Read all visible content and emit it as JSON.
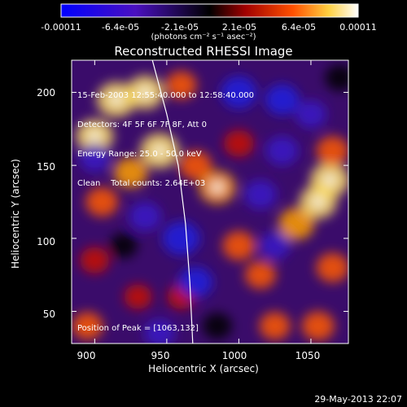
{
  "colorbar": {
    "ticks": [
      "-0.00011",
      "-6.4e-05",
      "-2.1e-05",
      "2.1e-05",
      "6.4e-05",
      "0.00011"
    ],
    "units": "(photons cm⁻² s⁻¹ asec⁻²)",
    "colors": [
      "#0000ff",
      "#5a1aa0",
      "#000000",
      "#b00000",
      "#ff6000",
      "#ffff80",
      "#ffffff"
    ]
  },
  "title": "Reconstructed RHESSI Image",
  "info": {
    "line1": "15-Feb-2003 12:55:40.000 to 12:58:40.000",
    "line2": "Detectors: 4F 5F 6F 7F 8F, Att 0",
    "line3": "Energy Range: 25.0 - 50.0 keV",
    "line4": "Clean    Total counts: 2.64E+03"
  },
  "peak_text": "Position of Peak = [1063,132]",
  "timestamp": "29-May-2013 22:07",
  "chart_data": {
    "type": "heatmap",
    "title": "Reconstructed RHESSI Image",
    "xlabel": "Heliocentric X (arcsec)",
    "ylabel": "Heliocentric Y (arcsec)",
    "xlim": [
      884,
      1076
    ],
    "ylim": [
      28,
      222
    ],
    "xticks": [
      900,
      950,
      1000,
      1050
    ],
    "yticks": [
      50,
      100,
      150,
      200
    ],
    "colorbar_range": [
      -0.00011,
      0.00011
    ],
    "peak": [
      1063,
      132
    ],
    "limb_curve": [
      [
        940,
        222
      ],
      [
        950,
        185
      ],
      [
        958,
        150
      ],
      [
        963,
        110
      ],
      [
        966,
        70
      ],
      [
        968,
        28
      ]
    ],
    "blobs": [
      {
        "x": 915,
        "y": 195,
        "v": 1.0
      },
      {
        "x": 900,
        "y": 170,
        "v": 0.9
      },
      {
        "x": 935,
        "y": 200,
        "v": 0.9
      },
      {
        "x": 945,
        "y": 160,
        "v": 1.0
      },
      {
        "x": 925,
        "y": 145,
        "v": 0.7
      },
      {
        "x": 905,
        "y": 125,
        "v": 0.6
      },
      {
        "x": 960,
        "y": 205,
        "v": 0.5
      },
      {
        "x": 985,
        "y": 135,
        "v": 0.85
      },
      {
        "x": 970,
        "y": 150,
        "v": 0.6
      },
      {
        "x": 1000,
        "y": 165,
        "v": 0.45
      },
      {
        "x": 1000,
        "y": 95,
        "v": 0.6
      },
      {
        "x": 1015,
        "y": 75,
        "v": 0.5
      },
      {
        "x": 1040,
        "y": 110,
        "v": 0.8
      },
      {
        "x": 1063,
        "y": 140,
        "v": 1.0
      },
      {
        "x": 1055,
        "y": 125,
        "v": 0.9
      },
      {
        "x": 1065,
        "y": 160,
        "v": 0.6
      },
      {
        "x": 1065,
        "y": 80,
        "v": 0.6
      },
      {
        "x": 1055,
        "y": 40,
        "v": 0.6
      },
      {
        "x": 1025,
        "y": 40,
        "v": 0.5
      },
      {
        "x": 900,
        "y": 85,
        "v": 0.4
      },
      {
        "x": 930,
        "y": 60,
        "v": 0.3
      },
      {
        "x": 895,
        "y": 40,
        "v": 0.5
      },
      {
        "x": 960,
        "y": 60,
        "v": 0.3
      },
      {
        "x": 920,
        "y": 95,
        "v": -0.3
      },
      {
        "x": 1000,
        "y": 200,
        "v": -0.8
      },
      {
        "x": 1030,
        "y": 195,
        "v": -0.7
      },
      {
        "x": 960,
        "y": 100,
        "v": -0.9
      },
      {
        "x": 970,
        "y": 70,
        "v": -0.7
      },
      {
        "x": 935,
        "y": 115,
        "v": -0.6
      },
      {
        "x": 1015,
        "y": 130,
        "v": -0.6
      },
      {
        "x": 1030,
        "y": 160,
        "v": -0.6
      },
      {
        "x": 900,
        "y": 155,
        "v": -0.5
      },
      {
        "x": 1050,
        "y": 185,
        "v": -0.5
      },
      {
        "x": 1025,
        "y": 95,
        "v": -0.5
      },
      {
        "x": 945,
        "y": 35,
        "v": -0.5
      },
      {
        "x": 985,
        "y": 40,
        "v": -0.4
      },
      {
        "x": 1070,
        "y": 210,
        "v": -0.4
      }
    ]
  }
}
